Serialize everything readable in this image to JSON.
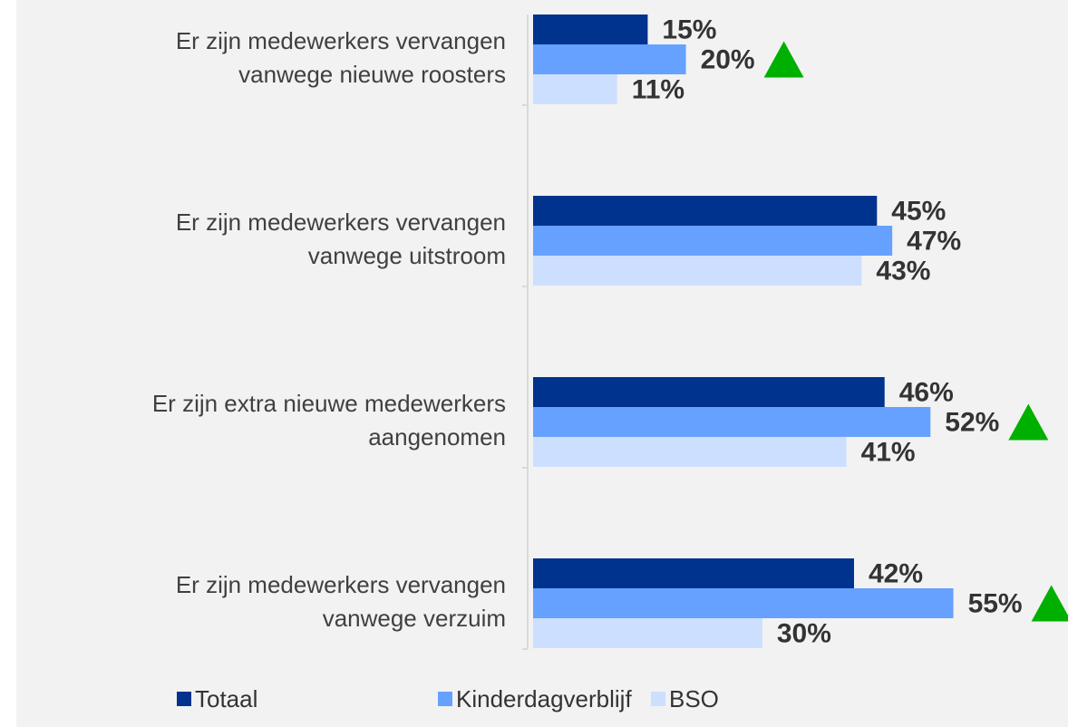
{
  "chart_data": {
    "type": "bar",
    "orientation": "horizontal",
    "categories": [
      [
        "Er zijn medewerkers vervangen",
        "vanwege nieuwe roosters"
      ],
      [
        "Er zijn medewerkers vervangen",
        "vanwege uitstroom"
      ],
      [
        "Er zijn extra nieuwe medewerkers",
        "aangenomen"
      ],
      [
        "Er zijn medewerkers vervangen",
        "vanwege verzuim"
      ]
    ],
    "series": [
      {
        "name": "Totaal",
        "color": "#00338d",
        "values": [
          15,
          45,
          46,
          42
        ],
        "value_labels": [
          "15%",
          "45%",
          "46%",
          "42%"
        ]
      },
      {
        "name": "Kinderdagverblijf",
        "color": "#66a1ff",
        "values": [
          20,
          47,
          52,
          55
        ],
        "value_labels": [
          "20%",
          "47%",
          "52%",
          "55%"
        ],
        "significant_up": [
          true,
          false,
          true,
          true
        ]
      },
      {
        "name": "BSO",
        "color": "#cddfff",
        "values": [
          11,
          43,
          41,
          30
        ],
        "value_labels": [
          "11%",
          "43%",
          "41%",
          "30%"
        ]
      }
    ],
    "xlim": [
      0,
      70
    ],
    "marker_color": "#00b000",
    "legend": "bottom"
  }
}
